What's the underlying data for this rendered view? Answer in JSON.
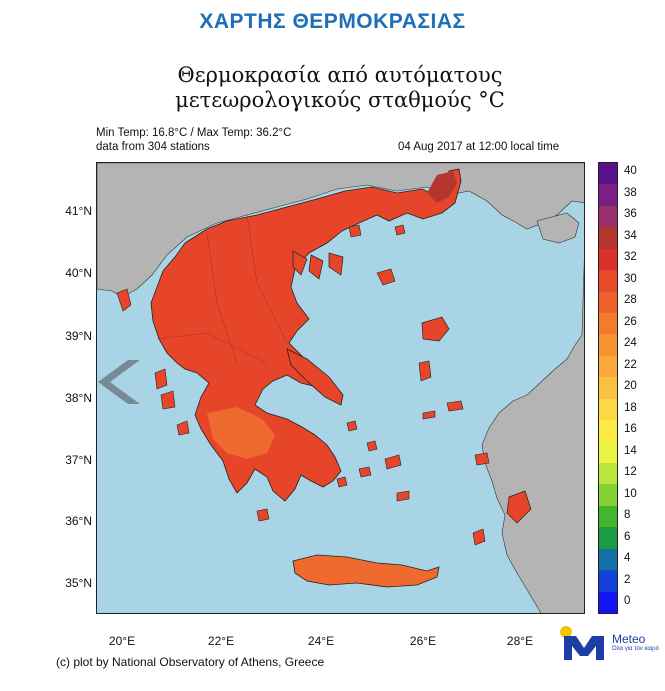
{
  "header": {
    "title": "ΧΑΡΤΗΣ ΘΕΡΜΟΚΡΑΣΙΑΣ"
  },
  "map": {
    "title_line_1": "Θερμοκρασία από αυτόματους",
    "title_line_2": "μετεωρολογικούς σταθμούς",
    "title_unit": "°C",
    "min_max": "Min Temp: 16.8°C / Max Temp: 36.2°C",
    "stations_note": "data from 304 stations",
    "datetime": "04 Aug 2017 at 12:00 local time",
    "lat_labels": [
      "41°N",
      "40°N",
      "39°N",
      "38°N",
      "37°N",
      "36°N",
      "35°N"
    ],
    "lon_labels": [
      "20°E",
      "22°E",
      "24°E",
      "26°E",
      "28°E"
    ],
    "colors": {
      "sea": "#a8d4e6",
      "land_other": "#b4b4b4",
      "greece_hot": "#e6452a",
      "greece_warm": "#ef6a2e",
      "greece_hottest": "#b5362f",
      "border": "#222222"
    }
  },
  "colorbar": {
    "labels": [
      "40",
      "38",
      "36",
      "34",
      "32",
      "30",
      "28",
      "26",
      "24",
      "22",
      "20",
      "18",
      "16",
      "14",
      "12",
      "10",
      "8",
      "6",
      "4",
      "2",
      "0"
    ]
  },
  "footer": {
    "credit": "(c) plot by National Observatory of Athens, Greece",
    "logo_name": "Meteo",
    "logo_tagline": "Όλα για τον καιρό"
  },
  "icons": {
    "nav": "chevron-left-icon",
    "logo": "meteo-logo-icon"
  }
}
